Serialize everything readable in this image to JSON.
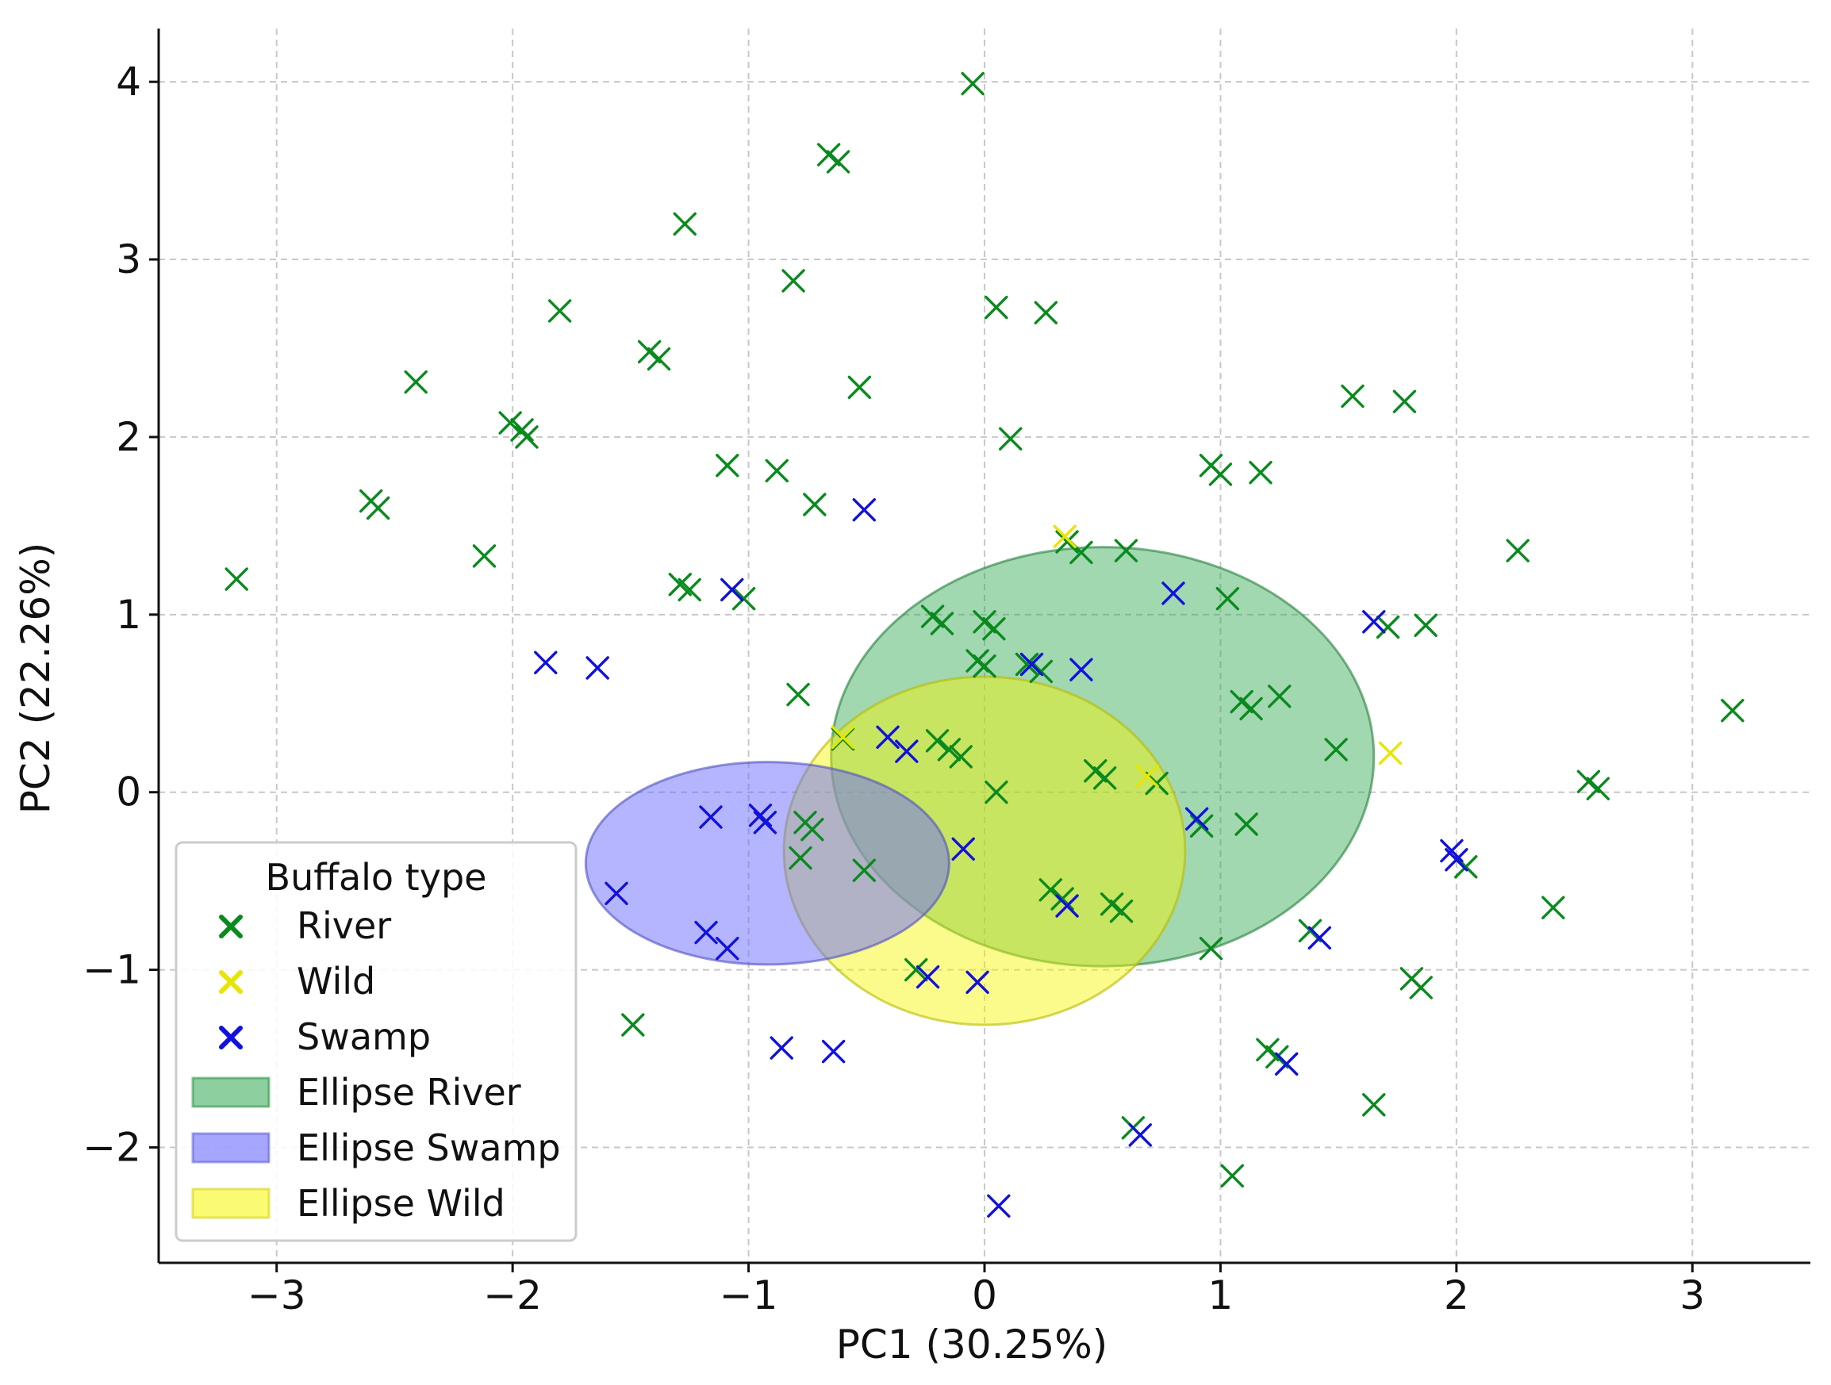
{
  "chart_data": {
    "type": "scatter",
    "title": "",
    "xlabel": "PC1 (30.25%)",
    "ylabel": "PC2 (22.26%)",
    "xlim": [
      -3.5,
      3.5
    ],
    "ylim": [
      -2.65,
      4.3
    ],
    "xticks": [
      -3,
      -2,
      -1,
      0,
      1,
      2,
      3
    ],
    "yticks": [
      -2,
      -1,
      0,
      1,
      2,
      3,
      4
    ],
    "xtick_labels": [
      "−3",
      "−2",
      "−1",
      "0",
      "1",
      "2",
      "3"
    ],
    "ytick_labels": [
      "−2",
      "−1",
      "0",
      "1",
      "2",
      "3",
      "4"
    ],
    "grid": true,
    "legend": {
      "title": "Buffalo type",
      "position": "lower-left",
      "entries": [
        "River",
        "Wild",
        "Swamp",
        "Ellipse River",
        "Ellipse Swamp",
        "Ellipse Wild"
      ]
    },
    "ellipses": [
      {
        "name": "Ellipse River",
        "center": [
          0.5,
          0.2
        ],
        "rx": 1.15,
        "ry": 1.18,
        "color": "#2fa84f",
        "alpha": 0.45
      },
      {
        "name": "Ellipse Wild",
        "center": [
          0.0,
          -0.33
        ],
        "rx": 0.85,
        "ry": 0.98,
        "color": "#f7f700",
        "alpha": 0.45
      },
      {
        "name": "Ellipse Swamp",
        "center": [
          -0.92,
          -0.4
        ],
        "rx": 0.77,
        "ry": 0.57,
        "color": "#6a6aff",
        "alpha": 0.5
      }
    ],
    "series": [
      {
        "name": "River",
        "color": "#0a8a1e",
        "points": [
          [
            -0.05,
            3.99
          ],
          [
            -0.66,
            3.59
          ],
          [
            -0.62,
            3.55
          ],
          [
            -1.27,
            3.2
          ],
          [
            -0.81,
            2.88
          ],
          [
            0.05,
            2.73
          ],
          [
            0.26,
            2.7
          ],
          [
            -1.8,
            2.71
          ],
          [
            -1.42,
            2.48
          ],
          [
            -1.38,
            2.44
          ],
          [
            -2.41,
            2.31
          ],
          [
            -0.53,
            2.28
          ],
          [
            1.56,
            2.23
          ],
          [
            1.78,
            2.2
          ],
          [
            -2.01,
            2.08
          ],
          [
            -1.96,
            2.04
          ],
          [
            -1.94,
            2.0
          ],
          [
            0.11,
            1.99
          ],
          [
            -1.09,
            1.84
          ],
          [
            -0.88,
            1.81
          ],
          [
            0.96,
            1.84
          ],
          [
            1.0,
            1.79
          ],
          [
            1.17,
            1.8
          ],
          [
            -0.72,
            1.62
          ],
          [
            -2.6,
            1.64
          ],
          [
            -2.57,
            1.6
          ],
          [
            0.35,
            1.41
          ],
          [
            0.6,
            1.36
          ],
          [
            0.41,
            1.35
          ],
          [
            2.26,
            1.36
          ],
          [
            -2.12,
            1.33
          ],
          [
            -1.29,
            1.17
          ],
          [
            -1.25,
            1.14
          ],
          [
            -3.17,
            1.2
          ],
          [
            -1.02,
            1.09
          ],
          [
            1.03,
            1.09
          ],
          [
            -0.22,
            0.99
          ],
          [
            -0.18,
            0.95
          ],
          [
            0.0,
            0.96
          ],
          [
            0.04,
            0.92
          ],
          [
            1.71,
            0.93
          ],
          [
            1.87,
            0.94
          ],
          [
            -0.03,
            0.74
          ],
          [
            0.0,
            0.71
          ],
          [
            0.18,
            0.72
          ],
          [
            0.24,
            0.68
          ],
          [
            -0.79,
            0.55
          ],
          [
            1.09,
            0.51
          ],
          [
            1.13,
            0.47
          ],
          [
            1.25,
            0.54
          ],
          [
            3.17,
            0.46
          ],
          [
            1.49,
            0.24
          ],
          [
            -0.6,
            0.3
          ],
          [
            -0.2,
            0.29
          ],
          [
            -0.15,
            0.24
          ],
          [
            -0.1,
            0.2
          ],
          [
            2.56,
            0.06
          ],
          [
            2.6,
            0.02
          ],
          [
            0.05,
            0.0
          ],
          [
            0.47,
            0.12
          ],
          [
            0.51,
            0.08
          ],
          [
            0.73,
            0.05
          ],
          [
            0.92,
            -0.19
          ],
          [
            1.11,
            -0.18
          ],
          [
            -0.76,
            -0.17
          ],
          [
            -0.73,
            -0.21
          ],
          [
            -0.78,
            -0.37
          ],
          [
            -0.51,
            -0.44
          ],
          [
            0.28,
            -0.55
          ],
          [
            0.33,
            -0.6
          ],
          [
            0.54,
            -0.63
          ],
          [
            0.58,
            -0.67
          ],
          [
            1.38,
            -0.78
          ],
          [
            2.04,
            -0.42
          ],
          [
            2.41,
            -0.65
          ],
          [
            1.81,
            -1.05
          ],
          [
            1.85,
            -1.1
          ],
          [
            0.96,
            -0.88
          ],
          [
            -0.29,
            -1.0
          ],
          [
            -1.49,
            -1.31
          ],
          [
            1.2,
            -1.45
          ],
          [
            1.24,
            -1.49
          ],
          [
            0.63,
            -1.89
          ],
          [
            1.65,
            -1.76
          ],
          [
            1.05,
            -2.16
          ]
        ]
      },
      {
        "name": "Wild",
        "color": "#e6e600",
        "points": [
          [
            0.34,
            1.44
          ],
          [
            1.72,
            0.22
          ],
          [
            0.69,
            0.09
          ],
          [
            -0.6,
            0.31
          ]
        ]
      },
      {
        "name": "Swamp",
        "color": "#1111dd",
        "points": [
          [
            -0.51,
            1.59
          ],
          [
            -1.07,
            1.14
          ],
          [
            0.8,
            1.12
          ],
          [
            1.65,
            0.96
          ],
          [
            -1.86,
            0.73
          ],
          [
            -1.64,
            0.7
          ],
          [
            0.41,
            0.69
          ],
          [
            0.2,
            0.72
          ],
          [
            -0.41,
            0.31
          ],
          [
            -0.33,
            0.23
          ],
          [
            -1.16,
            -0.14
          ],
          [
            -0.93,
            -0.17
          ],
          [
            -0.95,
            -0.13
          ],
          [
            0.9,
            -0.15
          ],
          [
            1.98,
            -0.33
          ],
          [
            2.0,
            -0.38
          ],
          [
            -0.09,
            -0.32
          ],
          [
            -1.56,
            -0.57
          ],
          [
            -1.18,
            -0.79
          ],
          [
            -1.09,
            -0.88
          ],
          [
            0.35,
            -0.64
          ],
          [
            -0.24,
            -1.04
          ],
          [
            -0.03,
            -1.07
          ],
          [
            1.42,
            -0.82
          ],
          [
            -0.86,
            -1.44
          ],
          [
            -0.64,
            -1.46
          ],
          [
            1.28,
            -1.53
          ],
          [
            0.66,
            -1.93
          ],
          [
            0.06,
            -2.33
          ]
        ]
      }
    ]
  }
}
